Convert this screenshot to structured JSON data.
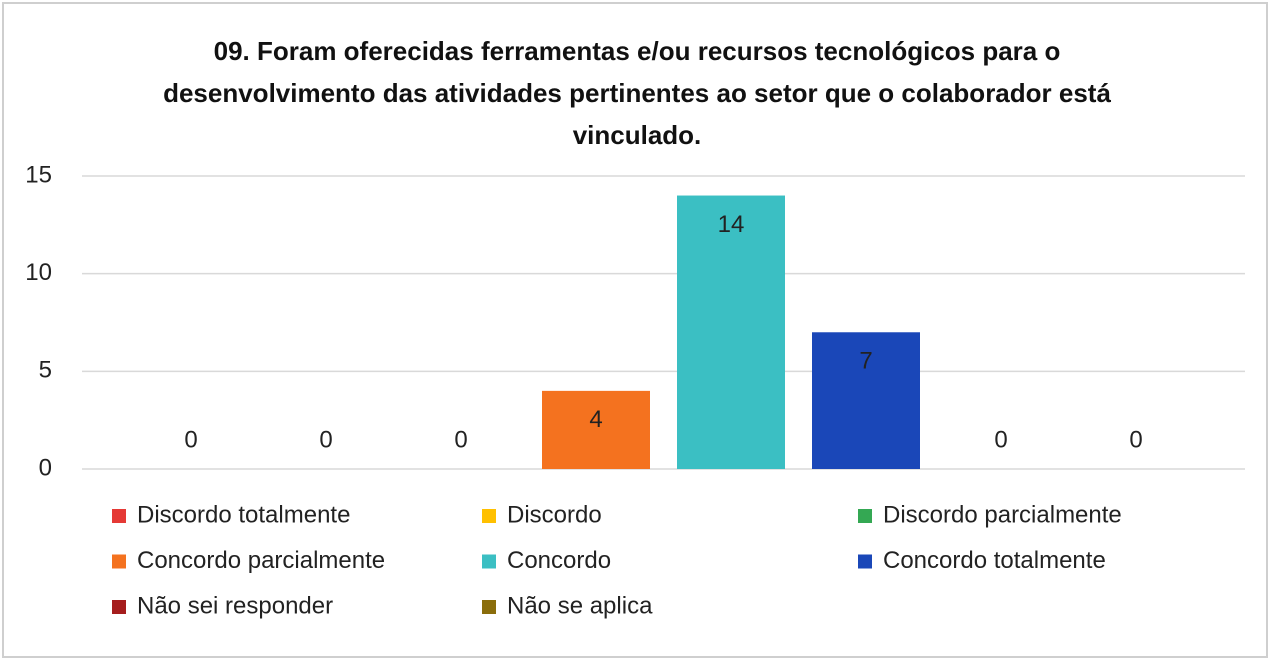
{
  "chart_data": {
    "type": "bar",
    "title": "09. Foram oferecidas ferramentas e/ou recursos tecnológicos para o desenvolvimento das atividades pertinentes ao setor que o colaborador está vinculado.",
    "series": [
      {
        "name": "Discordo totalmente",
        "color": "#e53935",
        "values": [
          0
        ]
      },
      {
        "name": "Discordo",
        "color": "#ffc000",
        "values": [
          0
        ]
      },
      {
        "name": "Discordo parcialmente",
        "color": "#34a853",
        "values": [
          0
        ]
      },
      {
        "name": "Concordo parcialmente",
        "color": "#f4721f",
        "values": [
          4
        ]
      },
      {
        "name": "Concordo",
        "color": "#3bbfc3",
        "values": [
          14
        ]
      },
      {
        "name": "Concordo totalmente",
        "color": "#1a47b8",
        "values": [
          7
        ]
      },
      {
        "name": "Não sei responder",
        "color": "#a51d1d",
        "values": [
          0
        ]
      },
      {
        "name": "Não se aplica",
        "color": "#8a6d0b",
        "values": [
          0
        ]
      }
    ],
    "ylim": [
      0,
      15
    ],
    "yticks": [
      0,
      5,
      10,
      15
    ],
    "grid": true
  }
}
